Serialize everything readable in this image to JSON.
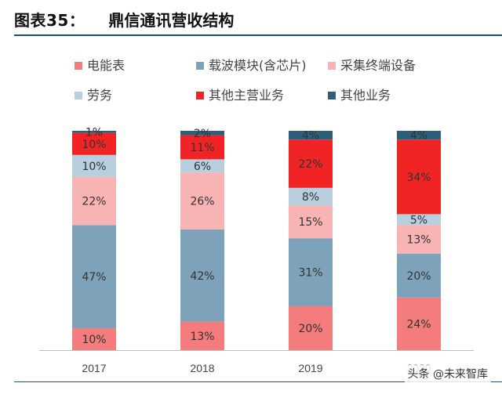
{
  "header": {
    "figure_no": "图表35：",
    "title": "鼎信通讯营收结构"
  },
  "watermark": "头条 @未来智库",
  "chart_data": {
    "type": "bar",
    "stacked": true,
    "percent_stacked": true,
    "categories": [
      "2017",
      "2018",
      "2019",
      "2020"
    ],
    "ylim": [
      0,
      100
    ],
    "grid": false,
    "legend_position": "top",
    "series": [
      {
        "name": "电能表",
        "color": "#f47c7c",
        "values": [
          10,
          13,
          20,
          24
        ],
        "labels": [
          "10%",
          "13%",
          "20%",
          "24%"
        ]
      },
      {
        "name": "载波模块(含芯片)",
        "color": "#7fa2bb",
        "values": [
          47,
          42,
          31,
          20
        ],
        "labels": [
          "47%",
          "42%",
          "31%",
          "20%"
        ]
      },
      {
        "name": "采集终端设备",
        "color": "#f8b4b4",
        "values": [
          22,
          26,
          15,
          13
        ],
        "labels": [
          "22%",
          "26%",
          "15%",
          "13%"
        ]
      },
      {
        "name": "劳务",
        "color": "#b7cfdf",
        "values": [
          10,
          6,
          8,
          5
        ],
        "labels": [
          "10%",
          "6%",
          "8%",
          "5%"
        ]
      },
      {
        "name": "其他主营业务",
        "color": "#f02424",
        "values": [
          10,
          11,
          22,
          34
        ],
        "labels": [
          "10%",
          "11%",
          "22%",
          "34%"
        ]
      },
      {
        "name": "其他业务",
        "color": "#2e5f7a",
        "values": [
          1,
          2,
          4,
          4
        ],
        "labels": [
          "1%",
          "2%",
          "4%",
          "4%"
        ]
      }
    ]
  }
}
